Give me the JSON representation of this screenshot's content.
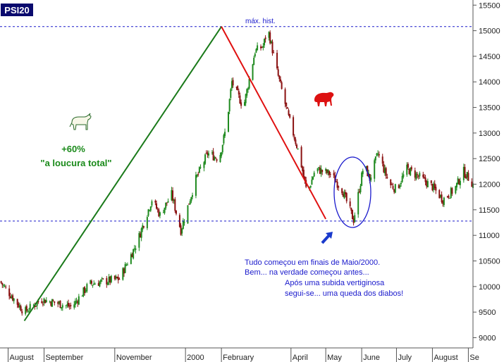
{
  "chart_data": {
    "type": "candlestick",
    "title": "PSI20",
    "xlabel": "",
    "ylabel": "",
    "ylim": [
      8800,
      15600
    ],
    "xlim": [
      "1999-07-25",
      "2000-09-05"
    ],
    "grid": false,
    "x_ticks": [
      {
        "date": "1999-08-01",
        "label": "August"
      },
      {
        "date": "1999-09-01",
        "label": "September"
      },
      {
        "date": "1999-11-01",
        "label": "November"
      },
      {
        "date": "2000-01-01",
        "label": "2000"
      },
      {
        "date": "2000-02-01",
        "label": "February"
      },
      {
        "date": "2000-04-01",
        "label": "April"
      },
      {
        "date": "2000-05-01",
        "label": "May"
      },
      {
        "date": "2000-06-01",
        "label": "June"
      },
      {
        "date": "2000-07-01",
        "label": "July"
      },
      {
        "date": "2000-08-01",
        "label": "August"
      },
      {
        "date": "2000-09-01",
        "label": "Se"
      }
    ],
    "y_ticks": [
      9000,
      9500,
      10000,
      10500,
      11000,
      11500,
      12000,
      12500,
      13000,
      13500,
      14000,
      14500,
      15000,
      15500
    ],
    "key_points": [
      {
        "date": "1999-07-25",
        "value": 10100
      },
      {
        "date": "1999-08-15",
        "value": 9500
      },
      {
        "date": "1999-08-30",
        "value": 9750
      },
      {
        "date": "1999-09-25",
        "value": 9600
      },
      {
        "date": "1999-10-10",
        "value": 10050
      },
      {
        "date": "1999-11-05",
        "value": 10150
      },
      {
        "date": "1999-11-20",
        "value": 10850
      },
      {
        "date": "1999-12-03",
        "value": 11700
      },
      {
        "date": "1999-12-10",
        "value": 11400
      },
      {
        "date": "1999-12-20",
        "value": 11800
      },
      {
        "date": "1999-12-28",
        "value": 11100
      },
      {
        "date": "2000-01-10",
        "value": 12100
      },
      {
        "date": "2000-01-20",
        "value": 12600
      },
      {
        "date": "2000-01-30",
        "value": 12500
      },
      {
        "date": "2000-02-05",
        "value": 13100
      },
      {
        "date": "2000-02-10",
        "value": 14000
      },
      {
        "date": "2000-02-20",
        "value": 13500
      },
      {
        "date": "2000-03-01",
        "value": 14600
      },
      {
        "date": "2000-03-08",
        "value": 14700
      },
      {
        "date": "2000-03-12",
        "value": 15050
      },
      {
        "date": "2000-03-20",
        "value": 14200
      },
      {
        "date": "2000-03-30",
        "value": 13300
      },
      {
        "date": "2000-04-08",
        "value": 12600
      },
      {
        "date": "2000-04-15",
        "value": 11800
      },
      {
        "date": "2000-04-22",
        "value": 12300
      },
      {
        "date": "2000-05-05",
        "value": 12200
      },
      {
        "date": "2000-05-15",
        "value": 11900
      },
      {
        "date": "2000-05-25",
        "value": 11300
      },
      {
        "date": "2000-06-03",
        "value": 12400
      },
      {
        "date": "2000-06-08",
        "value": 12100
      },
      {
        "date": "2000-06-15",
        "value": 12600
      },
      {
        "date": "2000-06-25",
        "value": 12000
      },
      {
        "date": "2000-07-01",
        "value": 11900
      },
      {
        "date": "2000-07-10",
        "value": 12300
      },
      {
        "date": "2000-07-20",
        "value": 12150
      },
      {
        "date": "2000-08-01",
        "value": 11950
      },
      {
        "date": "2000-08-10",
        "value": 11700
      },
      {
        "date": "2000-08-20",
        "value": 11900
      },
      {
        "date": "2000-08-28",
        "value": 12250
      },
      {
        "date": "2000-09-05",
        "value": 12000
      }
    ],
    "reference_lines": [
      {
        "value": 15080,
        "color": "#1a1acc",
        "style": "dashed"
      },
      {
        "value": 11280,
        "color": "#1a1acc",
        "style": "dashed"
      }
    ],
    "trend_lines": [
      {
        "from": {
          "date": "1999-08-15",
          "value": 9330
        },
        "to": {
          "date": "2000-02-01",
          "value": 15080
        },
        "color": "#1a7a1a"
      },
      {
        "from": {
          "date": "2000-02-01",
          "value": 15080
        },
        "to": {
          "date": "2000-05-01",
          "value": 11320
        },
        "color": "#e01010"
      }
    ],
    "annotations": {
      "peak_label": "máx. hist.",
      "gain_pct": "+60%",
      "gain_caption": "\"a loucura total\"",
      "commentary": [
        "Tudo começou em finais de Maio/2000.",
        "Bem... na verdade começou antes...",
        "Após uma subida vertiginosa",
        "segui-se... uma queda dos diabos!"
      ]
    },
    "colors": {
      "up": "#1f8a1f",
      "down": "#8a1010",
      "axis": "#555555",
      "title_bg": "#0a0a6e",
      "title_fg": "#ffffff",
      "reference": "#1a1acc",
      "bull_line": "#1a7a1a",
      "bear_line": "#e01010",
      "green_text": "#1a8a1a",
      "blue_text": "#1a1acc",
      "bear_icon": "#dd1111",
      "ellipse": "#1a1acc",
      "arrow": "#1a3acc"
    },
    "icons": {
      "bull": "bull-icon",
      "bear": "bear-icon",
      "arrow": "arrow-up-right-icon"
    }
  }
}
